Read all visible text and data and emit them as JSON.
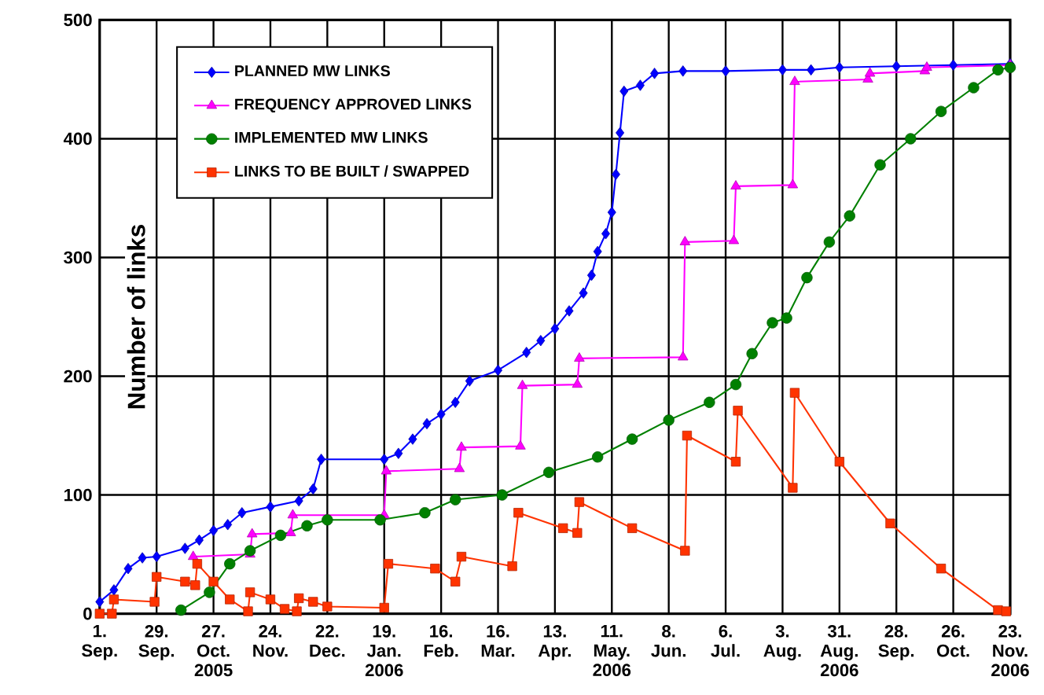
{
  "chart_data": {
    "type": "line",
    "ylabel": "Number of links",
    "xlim": [
      "2005-09-01",
      "2006-11-23"
    ],
    "ylim": [
      0,
      500
    ],
    "yticks": [
      0,
      100,
      200,
      300,
      400,
      500
    ],
    "xticks": [
      {
        "value": "2005-09-01",
        "label": "1. Sep."
      },
      {
        "value": "2005-09-29",
        "label": "29. Sep."
      },
      {
        "value": "2005-10-27",
        "label": "27. Oct. 2005"
      },
      {
        "value": "2005-11-24",
        "label": "24. Nov."
      },
      {
        "value": "2005-12-22",
        "label": "22. Dec."
      },
      {
        "value": "2006-01-19",
        "label": "19. Jan. 2006"
      },
      {
        "value": "2006-02-16",
        "label": "16. Feb."
      },
      {
        "value": "2006-03-16",
        "label": "16. Mar."
      },
      {
        "value": "2006-04-13",
        "label": "13. Apr."
      },
      {
        "value": "2006-05-11",
        "label": "11. May. 2006"
      },
      {
        "value": "2006-06-08",
        "label": "8. Jun."
      },
      {
        "value": "2006-07-06",
        "label": "6. Jul."
      },
      {
        "value": "2006-08-03",
        "label": "3. Aug."
      },
      {
        "value": "2006-08-31",
        "label": "31. Aug. 2006"
      },
      {
        "value": "2006-09-28",
        "label": "28. Sep."
      },
      {
        "value": "2006-10-26",
        "label": "26. Oct."
      },
      {
        "value": "2006-11-23",
        "label": "23. Nov. 2006"
      }
    ],
    "grid": true,
    "legend": "top left",
    "line_style": "solid",
    "series": [
      {
        "name": "PLANNED MW LINKS",
        "color": "#0000ff",
        "marker": "diamond",
        "x": [
          "2005-09-01",
          "2005-09-08",
          "2005-09-15",
          "2005-09-22",
          "2005-09-29",
          "2005-10-13",
          "2005-10-20",
          "2005-10-27",
          "2005-11-03",
          "2005-11-10",
          "2005-11-24",
          "2005-12-08",
          "2005-12-15",
          "2005-12-19",
          "2006-01-19",
          "2006-01-26",
          "2006-02-02",
          "2006-02-09",
          "2006-02-16",
          "2006-02-23",
          "2006-03-02",
          "2006-03-16",
          "2006-03-30",
          "2006-04-06",
          "2006-04-13",
          "2006-04-20",
          "2006-04-27",
          "2006-05-01",
          "2006-05-04",
          "2006-05-08",
          "2006-05-11",
          "2006-05-13",
          "2006-05-15",
          "2006-05-17",
          "2006-05-25",
          "2006-06-01",
          "2006-06-15",
          "2006-07-06",
          "2006-08-03",
          "2006-08-17",
          "2006-08-31",
          "2006-09-28",
          "2006-10-26",
          "2006-11-23"
        ],
        "values": [
          10,
          20,
          38,
          47,
          48,
          55,
          62,
          70,
          75,
          85,
          90,
          95,
          105,
          130,
          130,
          135,
          147,
          160,
          168,
          178,
          196,
          205,
          220,
          230,
          240,
          255,
          270,
          285,
          305,
          320,
          338,
          370,
          405,
          440,
          445,
          455,
          457,
          457,
          458,
          458,
          460,
          461,
          462,
          463
        ]
      },
      {
        "name": "FREQUENCY APPROVED LINKS",
        "color": "#ff00ff",
        "marker": "triangle",
        "x": [
          "2005-10-17",
          "2005-11-14",
          "2005-11-15",
          "2005-12-04",
          "2005-12-05",
          "2006-01-19",
          "2006-01-20",
          "2006-02-25",
          "2006-02-26",
          "2006-03-27",
          "2006-03-28",
          "2006-04-24",
          "2006-04-25",
          "2006-06-15",
          "2006-06-16",
          "2006-07-10",
          "2006-07-11",
          "2006-08-08",
          "2006-08-09",
          "2006-09-14",
          "2006-09-15",
          "2006-10-12",
          "2006-10-13",
          "2006-11-23"
        ],
        "values": [
          48,
          50,
          67,
          68,
          83,
          83,
          120,
          122,
          140,
          141,
          192,
          193,
          215,
          216,
          313,
          314,
          360,
          361,
          448,
          450,
          455,
          457,
          460,
          462
        ]
      },
      {
        "name": "IMPLEMENTED MW LINKS",
        "color": "#008000",
        "marker": "circle",
        "x": [
          "2005-10-11",
          "2005-10-25",
          "2005-11-04",
          "2005-11-14",
          "2005-11-29",
          "2005-12-12",
          "2005-12-22",
          "2006-01-17",
          "2006-02-08",
          "2006-02-23",
          "2006-03-18",
          "2006-04-10",
          "2006-05-04",
          "2006-05-21",
          "2006-06-08",
          "2006-06-28",
          "2006-07-11",
          "2006-07-19",
          "2006-07-29",
          "2006-08-05",
          "2006-08-15",
          "2006-08-26",
          "2006-09-05",
          "2006-09-20",
          "2006-10-05",
          "2006-10-20",
          "2006-11-05",
          "2006-11-17",
          "2006-11-23"
        ],
        "values": [
          3,
          18,
          42,
          53,
          66,
          74,
          79,
          79,
          85,
          96,
          100,
          119,
          132,
          147,
          163,
          178,
          193,
          219,
          245,
          249,
          283,
          313,
          335,
          378,
          400,
          423,
          443,
          458,
          460
        ]
      },
      {
        "name": "LINKS TO BE BUILT / SWAPPED",
        "color": "#ff3300",
        "marker": "square",
        "x": [
          "2005-09-01",
          "2005-09-07",
          "2005-09-08",
          "2005-09-28",
          "2005-09-29",
          "2005-10-13",
          "2005-10-18",
          "2005-10-19",
          "2005-10-27",
          "2005-11-04",
          "2005-11-13",
          "2005-11-14",
          "2005-11-24",
          "2005-12-01",
          "2005-12-07",
          "2005-12-08",
          "2005-12-15",
          "2005-12-22",
          "2006-01-19",
          "2006-01-21",
          "2006-02-13",
          "2006-02-23",
          "2006-02-26",
          "2006-03-23",
          "2006-03-26",
          "2006-04-17",
          "2006-04-24",
          "2006-04-25",
          "2006-05-21",
          "2006-06-16",
          "2006-06-17",
          "2006-07-11",
          "2006-07-12",
          "2006-08-08",
          "2006-08-09",
          "2006-08-31",
          "2006-09-25",
          "2006-10-20",
          "2006-11-17",
          "2006-11-21"
        ],
        "values": [
          0,
          0,
          12,
          10,
          31,
          27,
          24,
          42,
          27,
          12,
          2,
          18,
          12,
          4,
          2,
          13,
          10,
          6,
          5,
          42,
          38,
          27,
          48,
          40,
          85,
          72,
          68,
          94,
          72,
          53,
          150,
          128,
          171,
          106,
          186,
          128,
          76,
          38,
          3,
          2
        ]
      }
    ]
  }
}
